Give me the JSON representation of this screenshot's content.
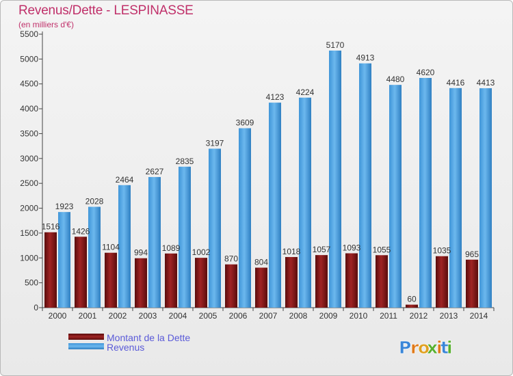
{
  "chart_data": {
    "type": "bar",
    "title": "Revenus/Dette - LESPINASSE",
    "subtitle": "(en milliers d'€)",
    "categories": [
      "2000",
      "2001",
      "2002",
      "2003",
      "2004",
      "2005",
      "2006",
      "2007",
      "2008",
      "2009",
      "2010",
      "2011",
      "2012",
      "2013",
      "2014"
    ],
    "series": [
      {
        "name": "Montant de la Dette",
        "color": "#8b1a1a",
        "values": [
          1516,
          1426,
          1104,
          994,
          1089,
          1002,
          870,
          804,
          1018,
          1057,
          1093,
          1055,
          60,
          1035,
          965
        ],
        "labels": [
          "1516",
          "1426",
          "1104",
          "994",
          "1089",
          "1002",
          "870",
          "804",
          "1018",
          "1057",
          "1093",
          "1055",
          "60",
          "1035",
          "965"
        ]
      },
      {
        "name": "Revenus",
        "color": "#4aa0e0",
        "values": [
          1923,
          2028,
          2464,
          2627,
          2835,
          3197,
          3609,
          4123,
          4224,
          5170,
          4913,
          4480,
          4620,
          4416,
          4413
        ],
        "labels": [
          "1923",
          "2028",
          "2464",
          "2627",
          "2835",
          "3197",
          "3609",
          "4123",
          "4224",
          "5170",
          "4913",
          "4480",
          "4620",
          "4416",
          "4413"
        ]
      }
    ],
    "yticks": [
      0,
      500,
      1000,
      1500,
      2000,
      2500,
      3000,
      3500,
      4000,
      4500,
      5000,
      5500
    ],
    "ylim": [
      0,
      5500
    ],
    "grid": false,
    "legend": "bottom-left"
  },
  "brand": {
    "logo_text": "Proxiti"
  }
}
